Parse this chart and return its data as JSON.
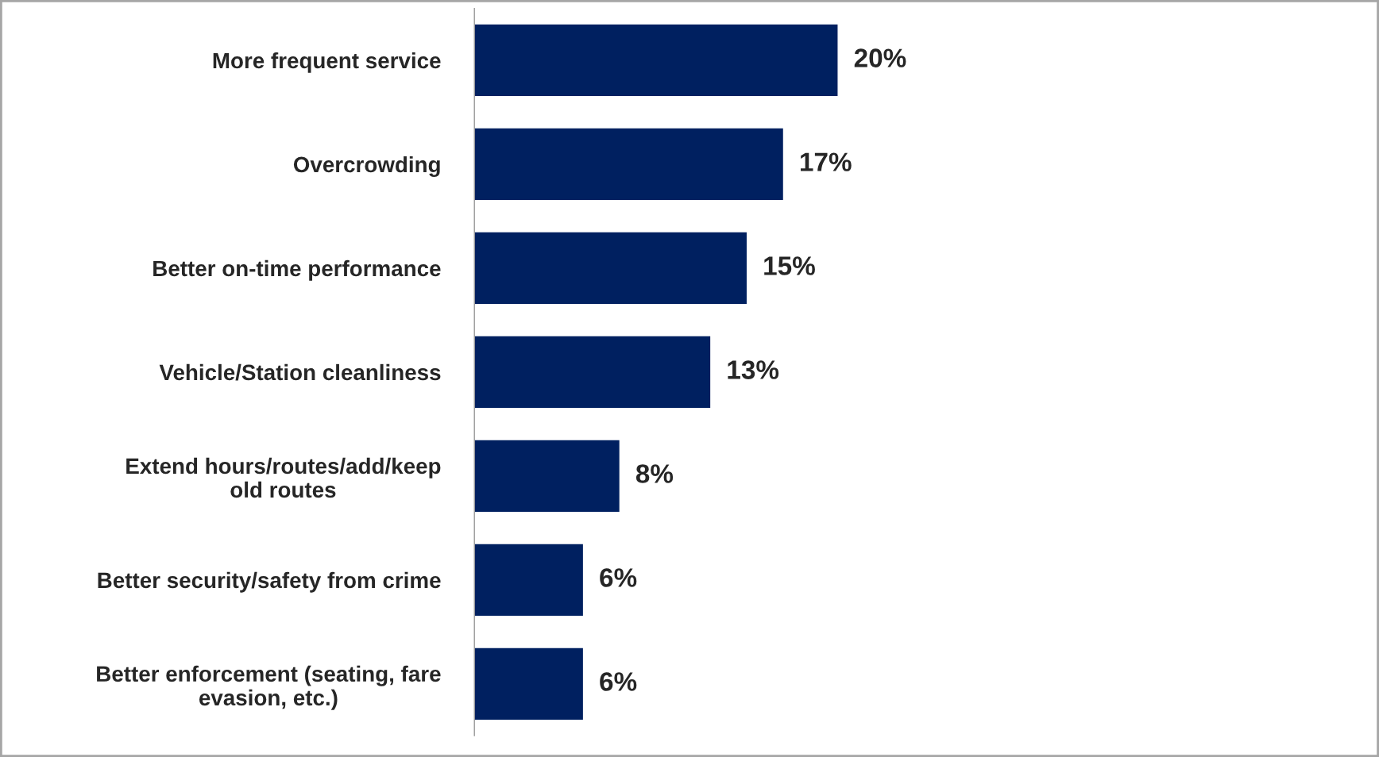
{
  "chart_data": {
    "type": "bar",
    "orientation": "horizontal",
    "categories": [
      "More frequent service",
      "Overcrowding",
      "Better on-time performance",
      "Vehicle/Station cleanliness",
      "Extend hours/routes/add/keep\nold routes",
      "Better security/safety from crime",
      "Better enforcement (seating, fare\nevasion, etc.)"
    ],
    "values": [
      20,
      17,
      15,
      13,
      8,
      6,
      6
    ],
    "value_labels": [
      "20%",
      "17%",
      "15%",
      "13%",
      "8%",
      "6%",
      "6%"
    ],
    "color": "#002060",
    "tick_labels": "y",
    "grid": false,
    "legend": false
  }
}
